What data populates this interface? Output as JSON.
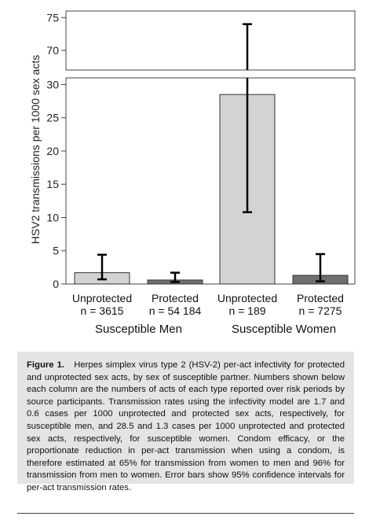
{
  "chart_data": {
    "type": "bar",
    "y_axis_label": "HSV2 transmissions per 1000 sex acts",
    "y_axis_break": {
      "lower_range": [
        0,
        31
      ],
      "upper_range": [
        67,
        76
      ]
    },
    "y_ticks_lower": [
      0,
      5,
      10,
      15,
      20,
      25,
      30
    ],
    "y_ticks_upper": [
      70,
      75
    ],
    "groups": [
      {
        "label": "Susceptible Men",
        "bars": [
          {
            "category": "Unprotected",
            "n_label": "n = 3615",
            "value": 1.7,
            "ci_low": 0.7,
            "ci_high": 4.4,
            "color": "#d3d3d3"
          },
          {
            "category": "Protected",
            "n_label": "n = 54 184",
            "value": 0.6,
            "ci_low": 0.3,
            "ci_high": 1.7,
            "color": "#6f6f6f"
          }
        ]
      },
      {
        "label": "Susceptible Women",
        "bars": [
          {
            "category": "Unprotected",
            "n_label": "n = 189",
            "value": 28.5,
            "ci_low": 10.8,
            "ci_high": 74.0,
            "color": "#d3d3d3"
          },
          {
            "category": "Protected",
            "n_label": "n = 7275",
            "value": 1.3,
            "ci_low": 0.4,
            "ci_high": 4.5,
            "color": "#6f6f6f"
          }
        ]
      }
    ]
  },
  "caption": {
    "label": "Figure 1.",
    "text": "Herpes simplex virus type 2 (HSV-2) per-act infectivity for protected and unprotected sex acts, by sex of susceptible partner. Numbers shown below each column are the numbers of acts of each type reported over risk periods by source participants. Transmission rates using the infectivity model are 1.7 and 0.6 cases per 1000 unprotected and protected sex acts, respectively, for susceptible men, and 28.5 and 1.3 cases per 1000 unprotected and protected sex acts, respectively, for susceptible women. Condom efficacy, or the proportionate reduction in per-act transmission when using a condom, is therefore estimated at 65% for transmission from women to men and 96% for transmission from men to women. Error bars show 95% confidence intervals for per-act transmission rates."
  }
}
